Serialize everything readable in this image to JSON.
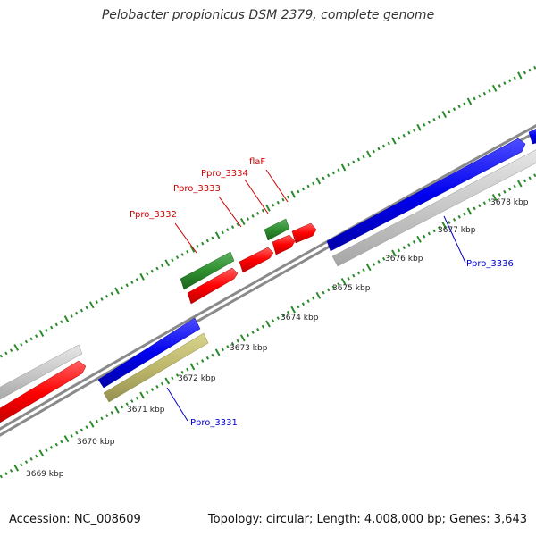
{
  "title": "Pelobacter propionicus DSM 2379, complete genome",
  "footer": {
    "accession": "Accession: NC_008609",
    "summary": "Topology: circular; Length: 4,008,000 bp; Genes: 3,643"
  },
  "colors": {
    "backbone": "#808080",
    "tick": "#2a8a2a",
    "label_red": "#cc0000",
    "label_blue": "#0000cc",
    "gene_red": "#ff0000",
    "gene_green": "#2f8f2f",
    "gene_blue": "#0000ee",
    "gene_gray": "#c8c8c8",
    "gene_olive": "#bdb76b"
  },
  "ticks": [
    {
      "label": "3669 kbp"
    },
    {
      "label": "3670 kbp"
    },
    {
      "label": "3671 kbp"
    },
    {
      "label": "3672 kbp"
    },
    {
      "label": "3673 kbp"
    },
    {
      "label": "3674 kbp"
    },
    {
      "label": "3675 kbp"
    },
    {
      "label": "3676 kbp"
    },
    {
      "label": "3677 kbp"
    },
    {
      "label": "3678 kbp"
    }
  ],
  "gene_labels": [
    {
      "text": "Ppro_3332",
      "color": "red"
    },
    {
      "text": "Ppro_3333",
      "color": "red"
    },
    {
      "text": "Ppro_3334",
      "color": "red"
    },
    {
      "text": "flaF",
      "color": "red"
    },
    {
      "text": "Ppro_3336",
      "color": "blue"
    },
    {
      "text": "Ppro_3331",
      "color": "blue"
    }
  ]
}
